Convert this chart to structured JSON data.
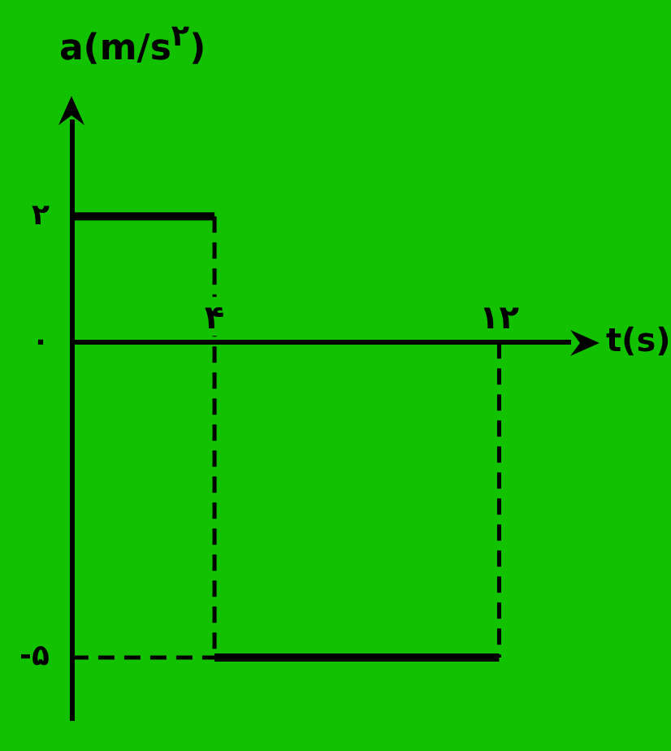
{
  "chart_data": {
    "type": "line",
    "xlabel": "t(s)",
    "ylabel": "a(m/s$^{۲}$)",
    "xlim": [
      0,
      14
    ],
    "xticks": [
      {
        "value": 4,
        "label": "۴"
      },
      {
        "value": 12,
        "label": "۱۲"
      }
    ],
    "ylim": [
      -6,
      3.5
    ],
    "yticks": [
      {
        "value": -5,
        "label": "-۵"
      },
      {
        "value": 0,
        "label": "۰"
      },
      {
        "value": 2,
        "label": "۲"
      }
    ],
    "series": [
      {
        "color": "#000000",
        "x": [
          0,
          4
        ],
        "values": [
          2,
          2
        ]
      },
      {
        "color": "#000000",
        "x": [
          4,
          12
        ],
        "values": [
          -5,
          -5
        ]
      },
      {
        "color": "#000000",
        "line_style": "dashed",
        "x": [
          4,
          4
        ],
        "values": [
          2,
          -5
        ]
      },
      {
        "color": "#000000",
        "line_style": "dashed",
        "x": [
          12,
          12
        ],
        "values": [
          0,
          -5
        ]
      },
      {
        "color": "#000000",
        "line_style": "dashed",
        "x": [
          0,
          4
        ],
        "values": [
          -5,
          -5
        ]
      }
    ]
  }
}
